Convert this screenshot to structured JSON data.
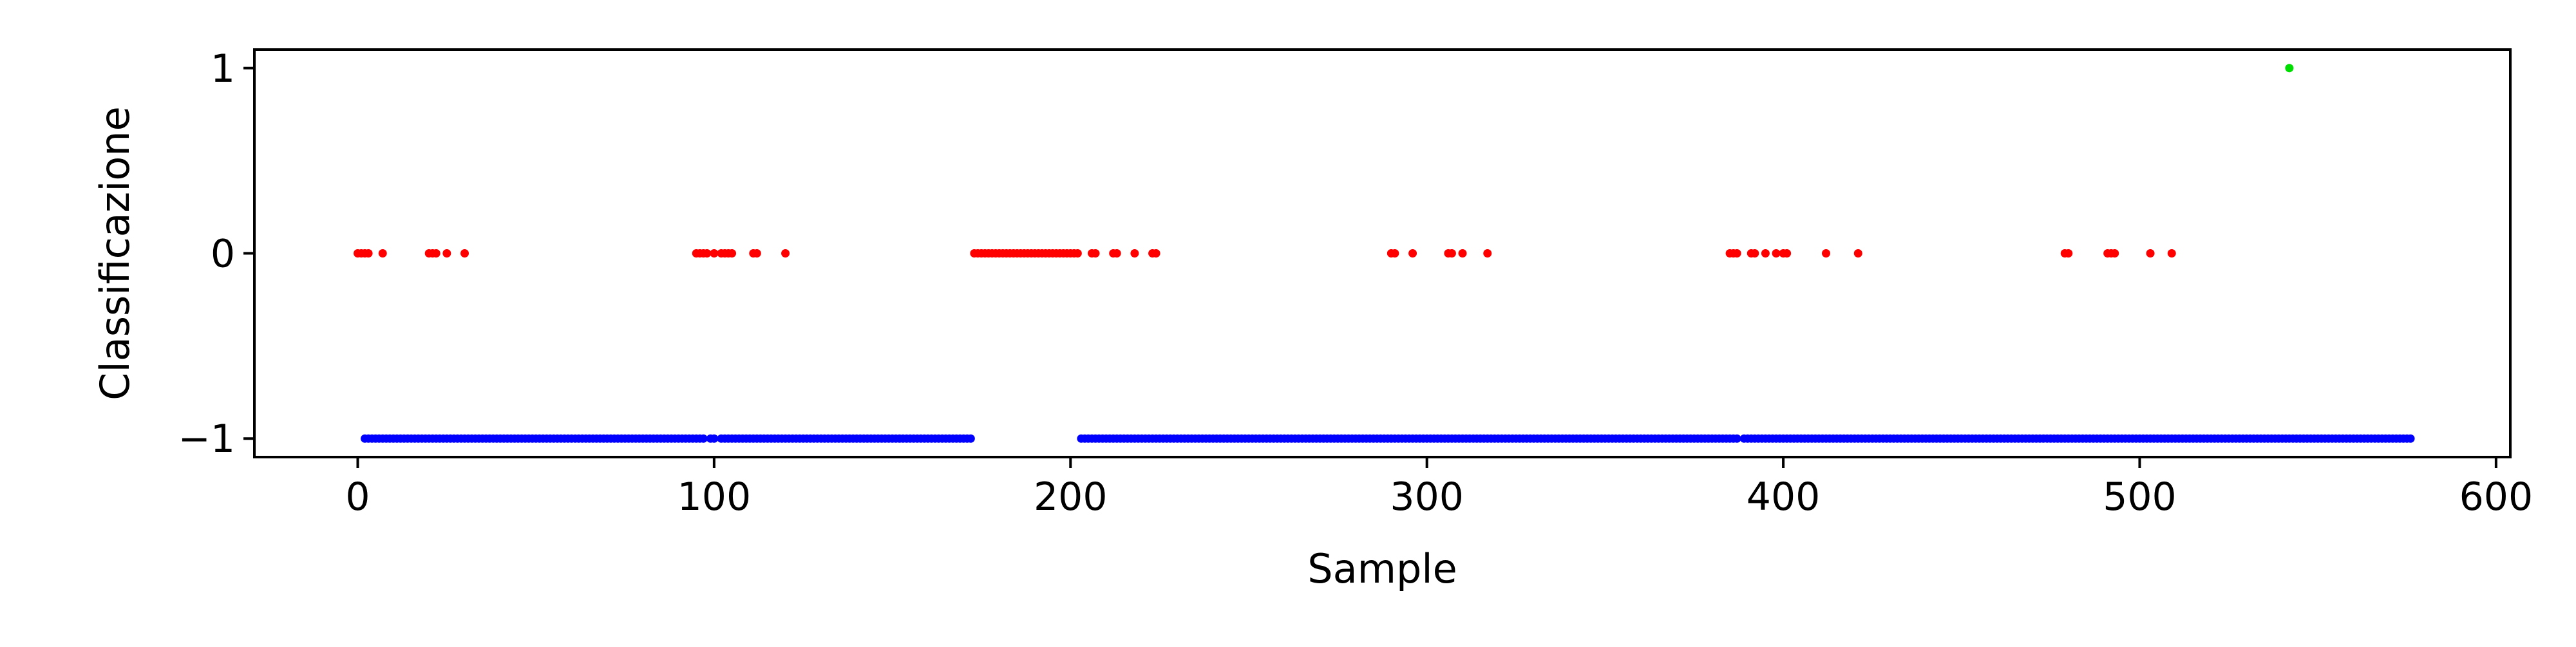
{
  "chart_data": {
    "type": "scatter",
    "title": "",
    "xlabel": "Sample",
    "ylabel": "Classificazione",
    "xlim": [
      -29,
      604
    ],
    "ylim": [
      -1.1,
      1.1
    ],
    "xticks": [
      0,
      100,
      200,
      300,
      400,
      500,
      600
    ],
    "yticks": [
      1,
      0,
      -1
    ],
    "ytick_labels": [
      "1",
      "0",
      "−1"
    ],
    "grid": false,
    "legend": "none",
    "series": [
      {
        "color": "#0000ff",
        "y": -1,
        "x_runs": [
          [
            2,
            97
          ],
          [
            99,
            100
          ],
          [
            102,
            172
          ],
          [
            203,
            387
          ],
          [
            389,
            576
          ]
        ]
      },
      {
        "color": "#ff0000",
        "y": 0,
        "x_points": [
          0,
          1,
          2,
          3,
          7,
          20,
          21,
          22,
          25,
          30,
          95,
          96,
          97,
          98,
          100,
          102,
          103,
          104,
          105,
          111,
          112,
          120,
          173,
          174,
          175,
          176,
          177,
          178,
          179,
          180,
          181,
          182,
          183,
          184,
          185,
          186,
          187,
          188,
          189,
          190,
          191,
          192,
          193,
          194,
          195,
          196,
          197,
          198,
          199,
          200,
          201,
          202,
          206,
          207,
          212,
          213,
          218,
          223,
          224,
          290,
          291,
          296,
          306,
          307,
          310,
          317,
          385,
          386,
          387,
          391,
          392,
          395,
          398,
          400,
          401,
          412,
          421,
          479,
          480,
          491,
          492,
          493,
          503,
          509
        ]
      },
      {
        "color": "#00dd00",
        "y": 1,
        "x_points": [
          542
        ]
      }
    ]
  }
}
